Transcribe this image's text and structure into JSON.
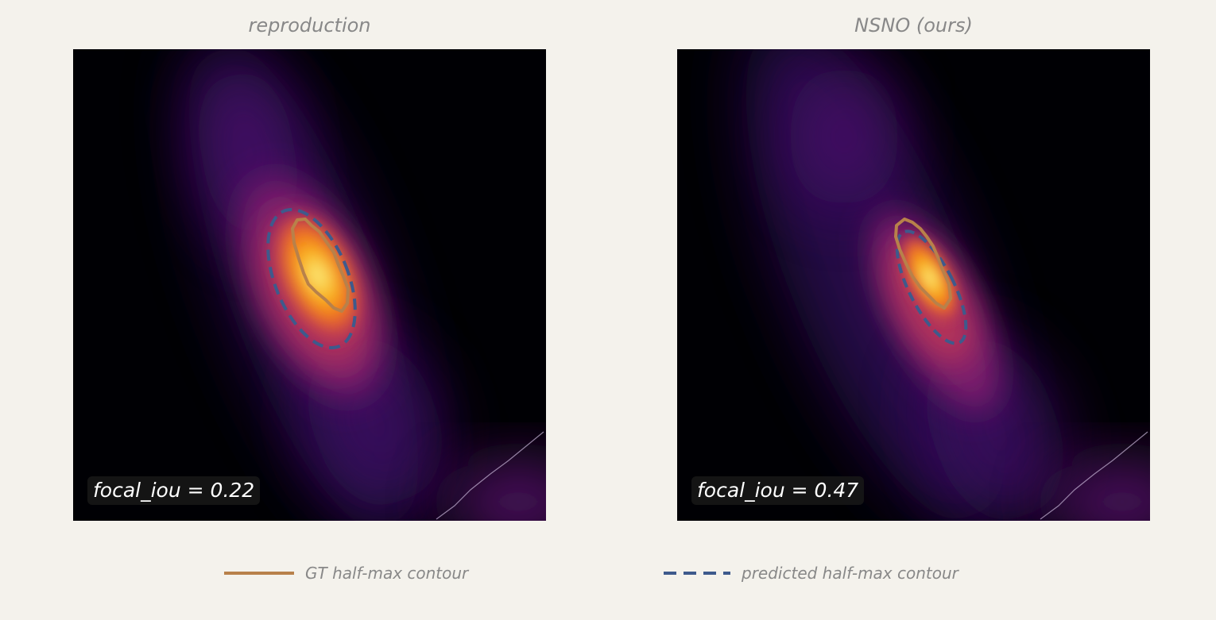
{
  "panels": [
    {
      "title": "reproduction",
      "metric": "focal_iou = 0.22"
    },
    {
      "title": "NSNO (ours)",
      "metric": "focal_iou = 0.47"
    }
  ],
  "legend": {
    "gt_label": "GT half-max contour",
    "pred_label": "predicted half-max contour"
  },
  "colors": {
    "gt_contour": "#b8814a",
    "pred_contour": "#3e5a8c",
    "background": "#f4f2ec",
    "colormap": "inferno"
  }
}
